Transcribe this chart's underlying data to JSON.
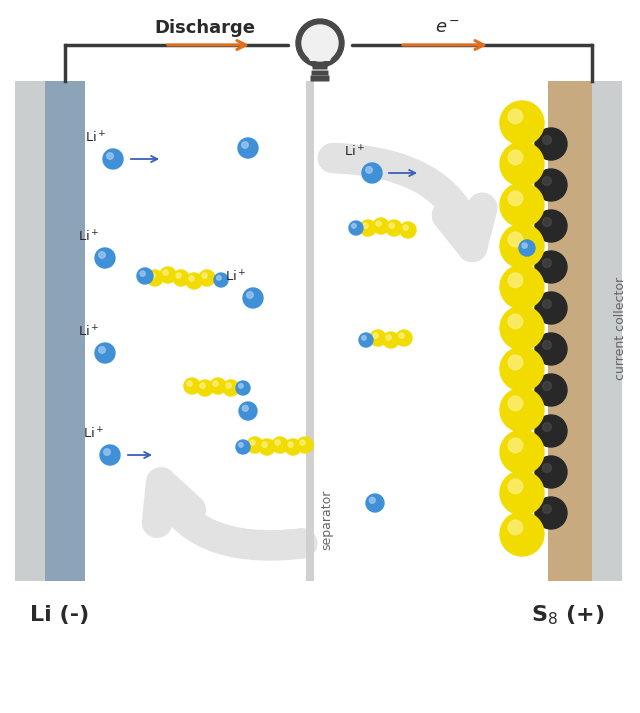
{
  "bg": "#ffffff",
  "li_outer": "#cbcecf",
  "li_inner": "#8da4b8",
  "cc_tan": "#c8aa80",
  "cc_outer": "#cbcecf",
  "sep_color": "#d0d0d0",
  "sulfur": "#f2dc00",
  "sulfur_hi": "#fdf080",
  "carbon": "#282828",
  "li_blue": "#4090d8",
  "li_blue_hi": "#a0c8f0",
  "orange": "#e07020",
  "blue_arr": "#3860b8",
  "ghost": "#e2e2e2",
  "dark": "#2a2a2a",
  "gray6": "#666666",
  "circuit_line": "#3a3a3a",
  "bulb_dark": "#484848",
  "bulb_line": "#888888",
  "label_Li": "Li (-)",
  "label_S8": "S$_8$ (+)",
  "label_discharge": "Discharge",
  "label_e": "e$^-$",
  "label_sep": "separator",
  "label_cc": "current collector"
}
